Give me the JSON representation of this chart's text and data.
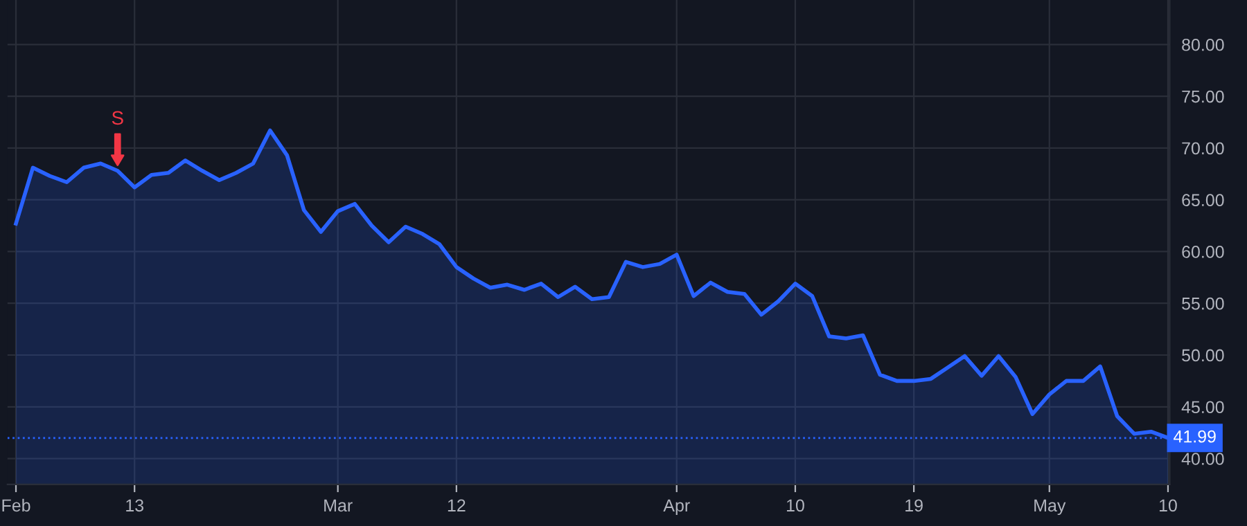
{
  "chart_data": {
    "type": "area",
    "categories": [
      "Feb",
      null,
      null,
      null,
      null,
      null,
      null,
      "13",
      null,
      null,
      null,
      null,
      null,
      null,
      null,
      null,
      null,
      null,
      null,
      "Mar",
      null,
      null,
      null,
      null,
      null,
      null,
      "12",
      null,
      null,
      null,
      null,
      null,
      null,
      null,
      null,
      null,
      null,
      null,
      null,
      "Apr",
      null,
      null,
      null,
      null,
      null,
      null,
      "10",
      null,
      null,
      null,
      null,
      null,
      null,
      "19",
      null,
      null,
      null,
      null,
      null,
      null,
      null,
      "May",
      null,
      null,
      null,
      null,
      null,
      null,
      "10"
    ],
    "series": [
      {
        "color": "#2962ff",
        "values": [
          62.7,
          68.1,
          67.3,
          66.7,
          68.1,
          68.5,
          67.8,
          66.2,
          67.4,
          67.6,
          68.8,
          67.8,
          66.9,
          67.6,
          68.5,
          71.7,
          69.3,
          64.0,
          61.9,
          63.9,
          64.6,
          62.5,
          60.9,
          62.4,
          61.7,
          60.7,
          58.5,
          57.4,
          56.5,
          56.8,
          56.3,
          56.9,
          55.6,
          56.6,
          55.4,
          55.6,
          59.0,
          58.5,
          58.8,
          59.7,
          55.7,
          57.0,
          56.1,
          55.9,
          53.9,
          55.2,
          56.9,
          55.7,
          51.8,
          51.6,
          51.9,
          48.1,
          47.5,
          47.5,
          47.7,
          48.8,
          49.9,
          48.0,
          49.9,
          47.9,
          44.3,
          46.2,
          47.5,
          47.5,
          48.9,
          44.1,
          42.4,
          42.6,
          42.0
        ]
      }
    ],
    "ylim": [
      37.5,
      84.3
    ],
    "yticks": [
      {
        "value": 40,
        "label": "40.00"
      },
      {
        "value": 45,
        "label": "45.00"
      },
      {
        "value": 50,
        "label": "50.00"
      },
      {
        "value": 55,
        "label": "55.00"
      },
      {
        "value": 60,
        "label": "60.00"
      },
      {
        "value": 65,
        "label": "65.00"
      },
      {
        "value": 70,
        "label": "70.00"
      },
      {
        "value": 75,
        "label": "75.00"
      },
      {
        "value": 80,
        "label": "80.00"
      }
    ],
    "ref_lines": [
      {
        "axis": "y",
        "value": 41.99,
        "label": "41.99",
        "color": "#2962ff",
        "line_style": "dotted"
      }
    ],
    "annotations": [
      {
        "text": "S",
        "y": 67.8
      }
    ],
    "grid": true,
    "legend": false
  }
}
